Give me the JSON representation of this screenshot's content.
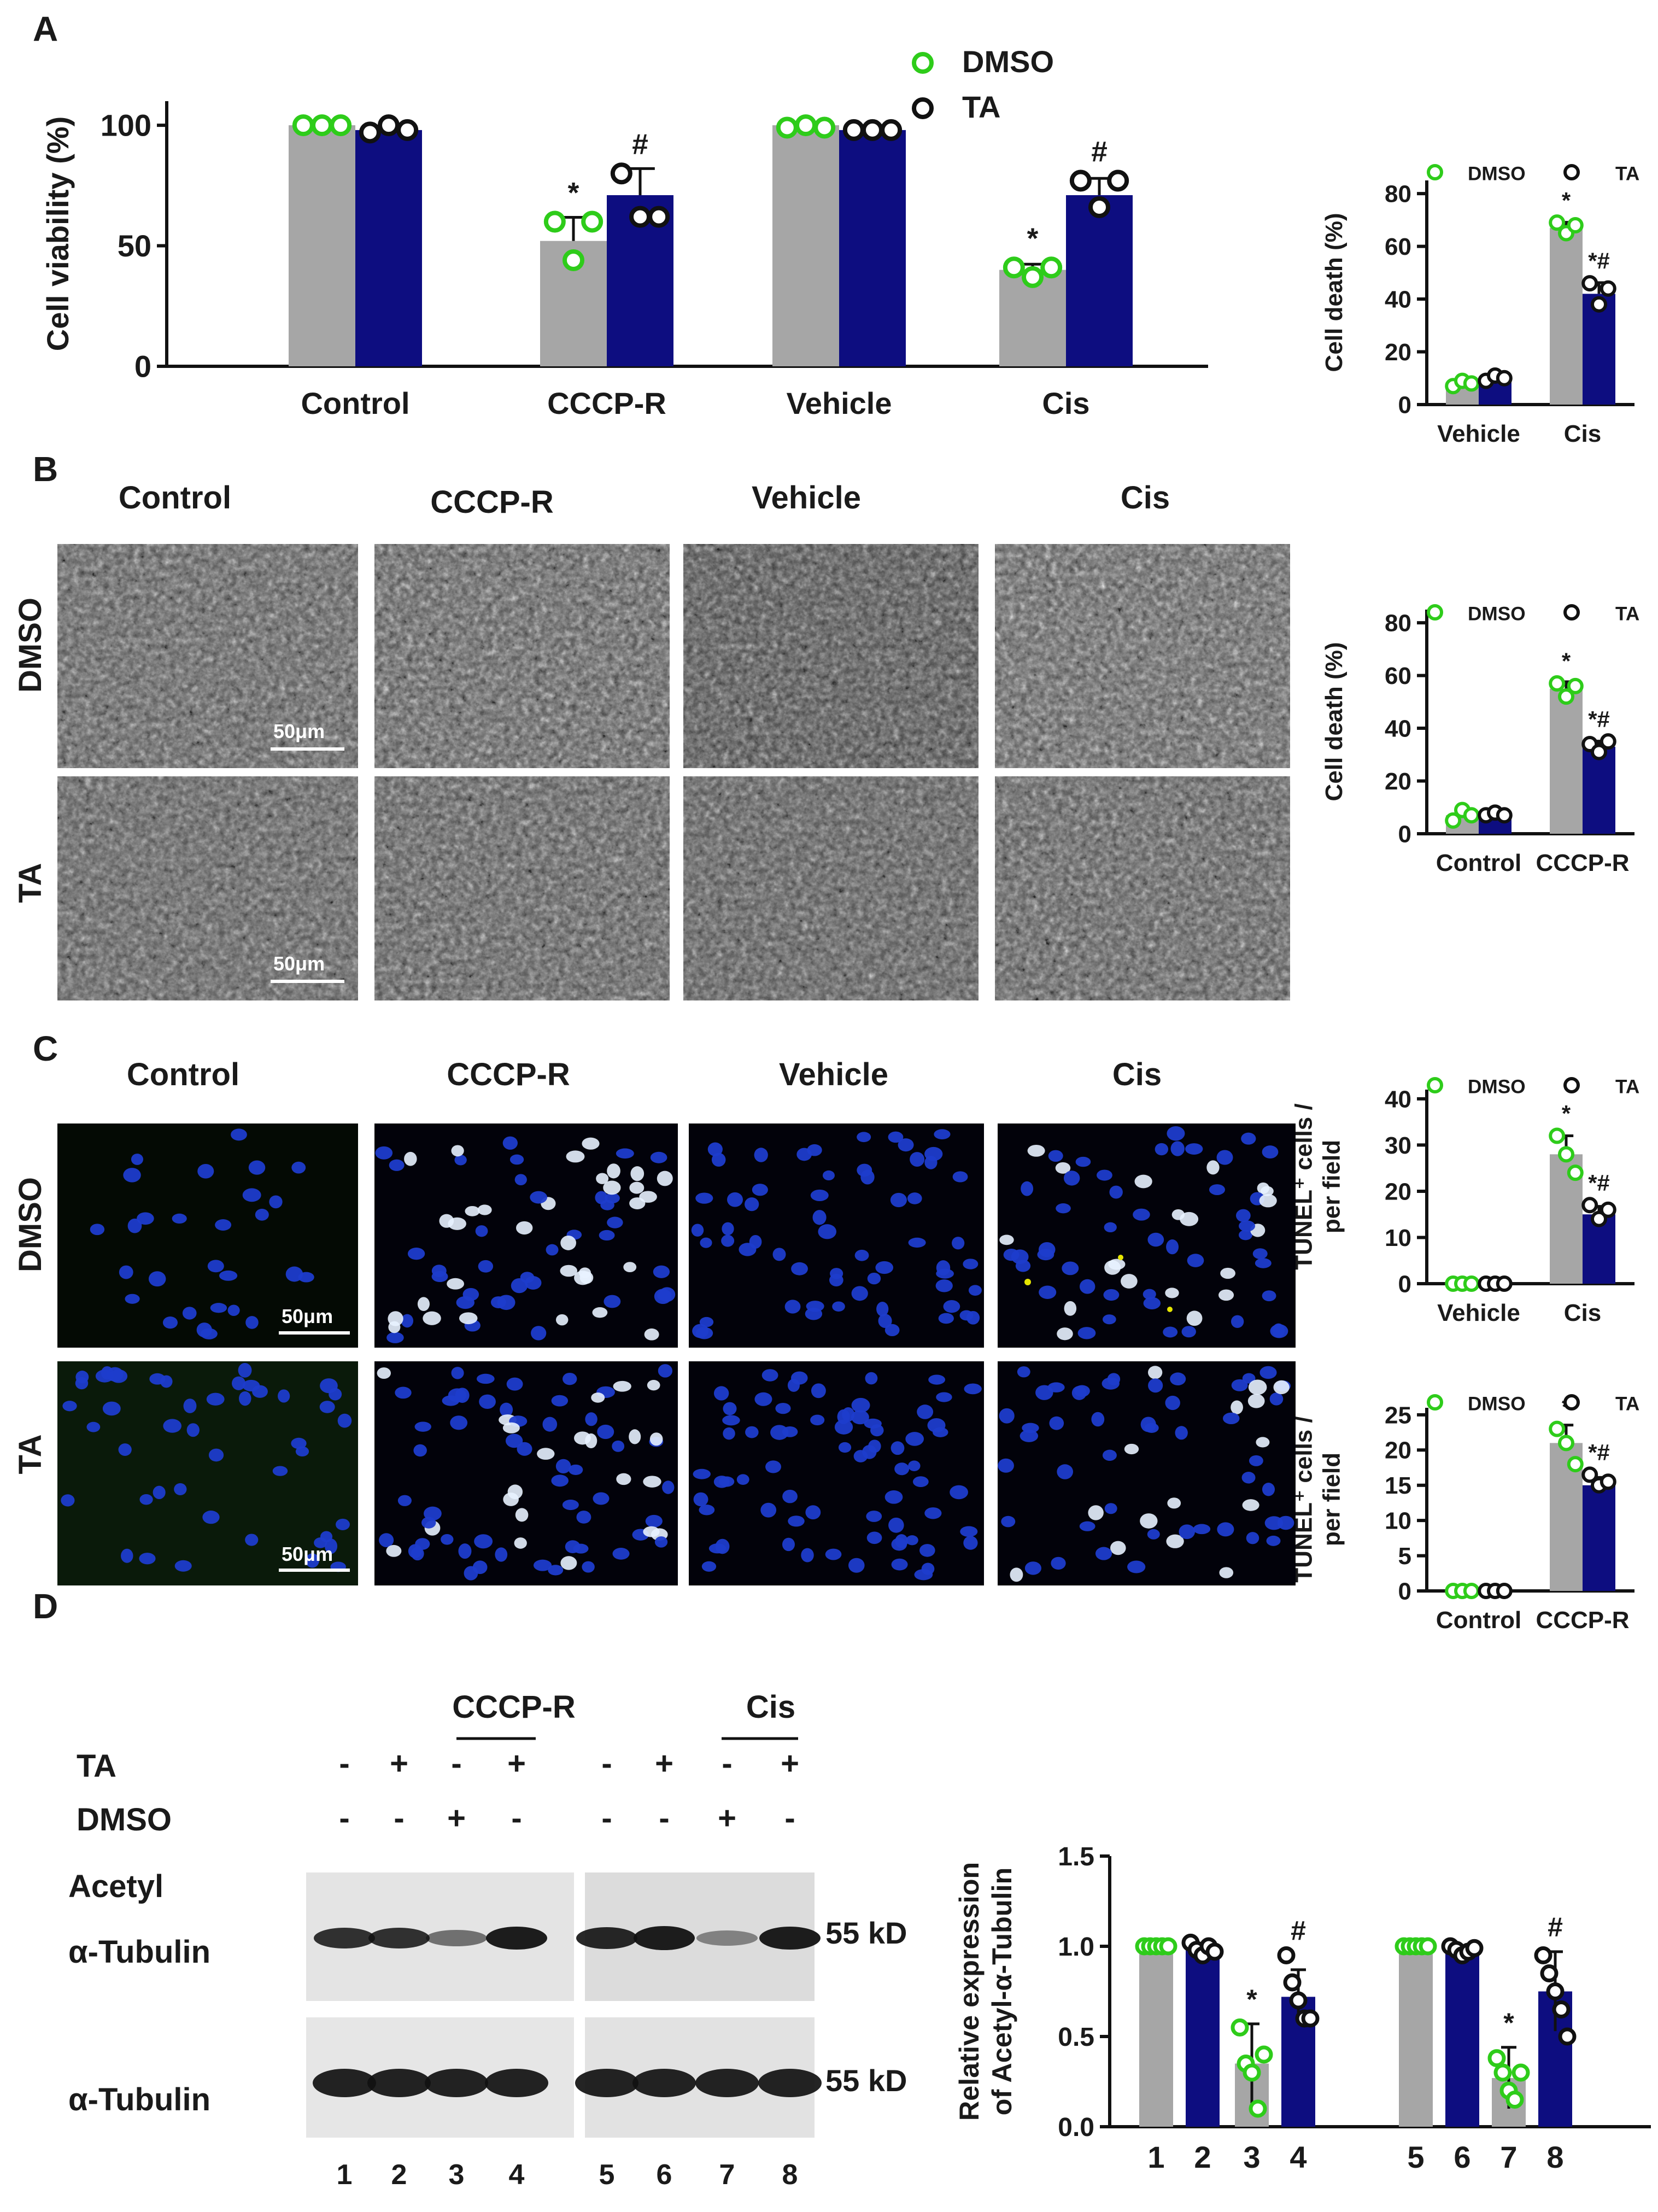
{
  "colors": {
    "dmso_bar": "#a6a6a6",
    "ta_bar": "#0d0d80",
    "dmso_marker": "#2ecc1a",
    "ta_marker": "#111111",
    "nuclei": "#1e3ccc",
    "tunel": "#e8f2ff",
    "yellow": "#e6e600"
  },
  "panels": {
    "A": "A",
    "B": "B",
    "C": "C",
    "D": "D"
  },
  "legend": {
    "dmso": "DMSO",
    "ta": "TA"
  },
  "image_labels": {
    "columns": [
      "Control",
      "CCCP-R",
      "Vehicle",
      "Cis"
    ],
    "rows": [
      "DMSO",
      "TA"
    ],
    "scale_bar": "50μm"
  },
  "western": {
    "group_cccp": "CCCP-R",
    "group_cis": "Cis",
    "row_ta_label": "TA",
    "row_dmso_label": "DMSO",
    "ta_signs": [
      "-",
      "+",
      "-",
      "+",
      "-",
      "+",
      "-",
      "+"
    ],
    "dmso_signs": [
      "-",
      "-",
      "+",
      "-",
      "-",
      "-",
      "+",
      "-"
    ],
    "acetyl_label_1": "Acetyl",
    "acetyl_label_2": "α-Tubulin",
    "tubulin_label": "α-Tubulin",
    "size_1": "55 kD",
    "size_2": "55 kD",
    "lanes": [
      "1",
      "2",
      "3",
      "4",
      "5",
      "6",
      "7",
      "8"
    ]
  },
  "chart_data": [
    {
      "id": "A_viability",
      "type": "bar",
      "title": "",
      "xlabel": "",
      "ylabel": "Cell viability (%)",
      "ylim": [
        0,
        110
      ],
      "yticks": [
        0,
        50,
        100
      ],
      "categories": [
        "Control",
        "CCCP-R",
        "Vehicle",
        "Cis"
      ],
      "series": [
        {
          "name": "DMSO",
          "values": [
            100,
            52,
            100,
            40
          ]
        },
        {
          "name": "TA",
          "values": [
            98,
            71,
            98,
            71
          ]
        }
      ],
      "points": {
        "DMSO": [
          [
            100,
            100,
            100
          ],
          [
            60,
            44,
            60
          ],
          [
            99,
            100,
            99
          ],
          [
            41,
            37,
            41
          ]
        ],
        "TA": [
          [
            97,
            100,
            98
          ],
          [
            80,
            62,
            62
          ],
          [
            98,
            98,
            98
          ],
          [
            77,
            66,
            77
          ]
        ]
      },
      "annotations": [
        {
          "category": "CCCP-R",
          "series": "DMSO",
          "text": "*"
        },
        {
          "category": "CCCP-R",
          "series": "TA",
          "text": "#"
        },
        {
          "category": "Cis",
          "series": "DMSO",
          "text": "*"
        },
        {
          "category": "Cis",
          "series": "TA",
          "text": "#"
        }
      ],
      "legend": "top-center"
    },
    {
      "id": "A_death",
      "type": "bar",
      "title": "",
      "ylabel": "Cell death (%)",
      "ylim": [
        0,
        85
      ],
      "yticks": [
        0,
        20,
        40,
        60,
        80
      ],
      "categories": [
        "Vehicle",
        "Cis"
      ],
      "series": [
        {
          "name": "DMSO",
          "values": [
            8,
            67
          ]
        },
        {
          "name": "TA",
          "values": [
            10,
            42
          ]
        }
      ],
      "points": {
        "DMSO": [
          [
            7,
            9,
            8
          ],
          [
            69,
            65,
            68
          ]
        ],
        "TA": [
          [
            9,
            11,
            10
          ],
          [
            46,
            38,
            44
          ]
        ]
      },
      "annotations": [
        {
          "category": "Cis",
          "series": "DMSO",
          "text": "*"
        },
        {
          "category": "Cis",
          "series": "TA",
          "text": "*#"
        }
      ],
      "legend": "top"
    },
    {
      "id": "B_death",
      "type": "bar",
      "title": "",
      "ylabel": "Cell death (%)",
      "ylim": [
        0,
        85
      ],
      "yticks": [
        0,
        20,
        40,
        60,
        80
      ],
      "categories": [
        "Control",
        "CCCP-R"
      ],
      "series": [
        {
          "name": "DMSO",
          "values": [
            7,
            55
          ]
        },
        {
          "name": "TA",
          "values": [
            7,
            33
          ]
        }
      ],
      "points": {
        "DMSO": [
          [
            5,
            9,
            7
          ],
          [
            57,
            52,
            56
          ]
        ],
        "TA": [
          [
            7,
            8,
            7
          ],
          [
            34,
            31,
            35
          ]
        ]
      },
      "annotations": [
        {
          "category": "CCCP-R",
          "series": "DMSO",
          "text": "*"
        },
        {
          "category": "CCCP-R",
          "series": "TA",
          "text": "*#"
        }
      ],
      "legend": "top"
    },
    {
      "id": "C_tunel_cis",
      "type": "bar",
      "title": "",
      "ylabel": "TUNEL⁺ cells / per field",
      "ylim": [
        0,
        42
      ],
      "yticks": [
        0,
        10,
        20,
        30,
        40
      ],
      "categories": [
        "Vehicle",
        "Cis"
      ],
      "series": [
        {
          "name": "DMSO",
          "values": [
            0,
            28
          ]
        },
        {
          "name": "TA",
          "values": [
            0,
            15
          ]
        }
      ],
      "points": {
        "DMSO": [
          [
            0,
            0,
            0
          ],
          [
            32,
            28,
            24
          ]
        ],
        "TA": [
          [
            0,
            0,
            0
          ],
          [
            17,
            14,
            16
          ]
        ]
      },
      "annotations": [
        {
          "category": "Cis",
          "series": "DMSO",
          "text": "*"
        },
        {
          "category": "Cis",
          "series": "TA",
          "text": "*#"
        }
      ],
      "legend": "top"
    },
    {
      "id": "C_tunel_cccp",
      "type": "bar",
      "title": "",
      "ylabel": "TUNEL⁺ cells / per field",
      "ylim": [
        0,
        26
      ],
      "yticks": [
        0,
        5,
        10,
        15,
        20,
        25
      ],
      "categories": [
        "Control",
        "CCCP-R"
      ],
      "series": [
        {
          "name": "DMSO",
          "values": [
            0,
            21
          ]
        },
        {
          "name": "TA",
          "values": [
            0,
            15
          ]
        }
      ],
      "points": {
        "DMSO": [
          [
            0,
            0,
            0
          ],
          [
            23,
            21,
            18
          ]
        ],
        "TA": [
          [
            0,
            0,
            0
          ],
          [
            16.5,
            15,
            15.5
          ]
        ]
      },
      "annotations": [
        {
          "category": "CCCP-R",
          "series": "DMSO",
          "text": "*"
        },
        {
          "category": "CCCP-R",
          "series": "TA",
          "text": "*#"
        }
      ],
      "legend": "top"
    },
    {
      "id": "D_expression",
      "type": "bar",
      "title": "",
      "ylabel": "Relative expression of Acetyl-α-Tubulin",
      "ylim": [
        0,
        1.5
      ],
      "yticks": [
        "0.0",
        "0.5",
        "1.0",
        "1.5"
      ],
      "categories": [
        "1",
        "2",
        "3",
        "4",
        "5",
        "6",
        "7",
        "8"
      ],
      "values": [
        1.0,
        0.98,
        0.35,
        0.72,
        1.0,
        0.97,
        0.27,
        0.75
      ],
      "errors": [
        0,
        0.03,
        0.22,
        0.15,
        0,
        0.03,
        0.17,
        0.22
      ],
      "bar_series": [
        "DMSO",
        "TA",
        "DMSO",
        "TA",
        "DMSO",
        "TA",
        "DMSO",
        "TA"
      ],
      "points": [
        [
          1,
          1,
          1,
          1,
          1
        ],
        [
          1.02,
          0.98,
          0.95,
          1.0,
          0.97
        ],
        [
          0.55,
          0.35,
          0.3,
          0.1,
          0.4
        ],
        [
          0.95,
          0.8,
          0.7,
          0.6,
          0.6
        ],
        [
          1,
          1,
          1,
          1,
          1
        ],
        [
          1.0,
          0.98,
          0.95,
          0.97,
          0.99
        ],
        [
          0.38,
          0.3,
          0.2,
          0.15,
          0.3
        ],
        [
          0.95,
          0.85,
          0.75,
          0.65,
          0.5
        ]
      ],
      "annotations": [
        {
          "category": "3",
          "text": "*"
        },
        {
          "category": "4",
          "text": "#"
        },
        {
          "category": "7",
          "text": "*"
        },
        {
          "category": "8",
          "text": "#"
        }
      ]
    }
  ]
}
